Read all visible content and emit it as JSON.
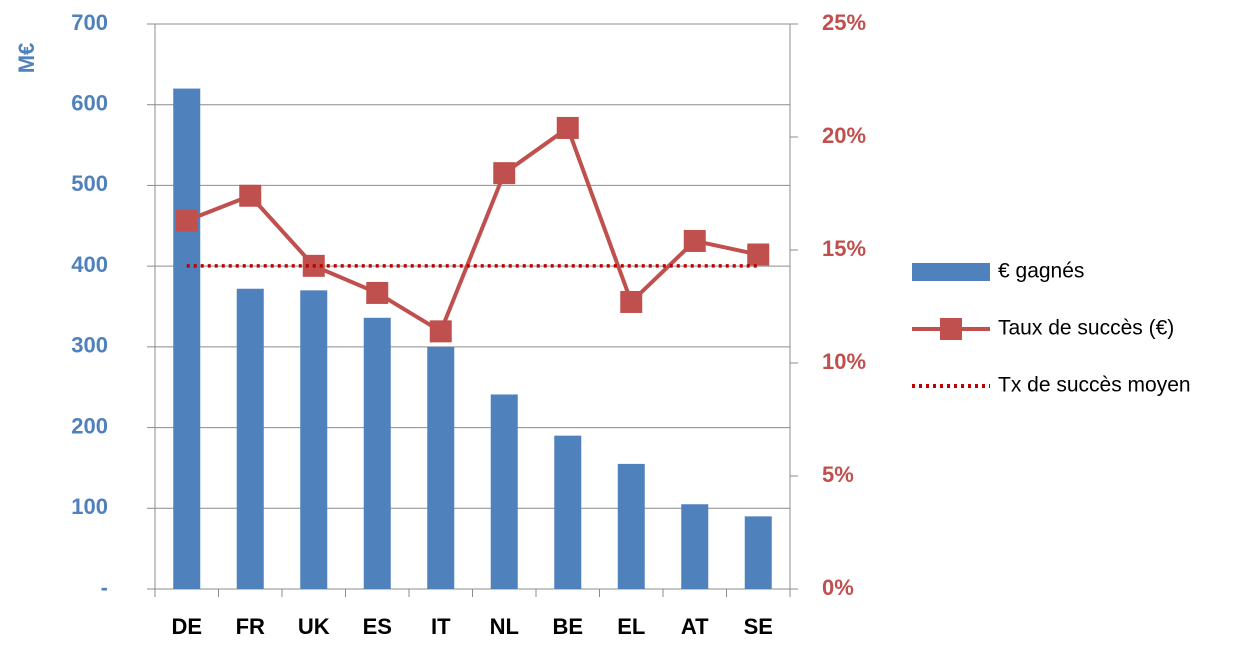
{
  "chart_data": {
    "type": "bar",
    "y_label": "M€",
    "categories": [
      "DE",
      "FR",
      "UK",
      "ES",
      "IT",
      "NL",
      "BE",
      "EL",
      "AT",
      "SE"
    ],
    "series": [
      {
        "name": "€ gagnés",
        "type": "bar",
        "color": "#4f81bd",
        "values": [
          620,
          372,
          370,
          336,
          300,
          241,
          190,
          155,
          105,
          90
        ]
      },
      {
        "name": "Taux de succès (€)",
        "type": "line",
        "axis": "y2",
        "color": "#c0504d",
        "marker": "square",
        "values": [
          16.3,
          17.4,
          14.3,
          13.1,
          11.4,
          18.4,
          20.4,
          12.7,
          15.4,
          14.8
        ]
      },
      {
        "name": "Tx de succès moyen",
        "type": "line",
        "axis": "y2",
        "color": "#c00000",
        "dash": "dotted",
        "values": [
          14.3,
          14.3,
          14.3,
          14.3,
          14.3,
          14.3,
          14.3,
          14.3,
          14.3,
          14.3
        ]
      }
    ],
    "ylim": [
      0,
      700
    ],
    "yticks": [
      {
        "value": 0,
        "label": "-"
      },
      100,
      200,
      300,
      400,
      500,
      600,
      700
    ],
    "y2lim": [
      0,
      25
    ],
    "y2ticks": [
      {
        "value": 0,
        "label": "0%"
      },
      {
        "value": 5,
        "label": "5%"
      },
      {
        "value": 10,
        "label": "10%"
      },
      {
        "value": 15,
        "label": "15%"
      },
      {
        "value": 20,
        "label": "20%"
      },
      {
        "value": 25,
        "label": "25%"
      }
    ],
    "grid": true,
    "legend": "right"
  }
}
